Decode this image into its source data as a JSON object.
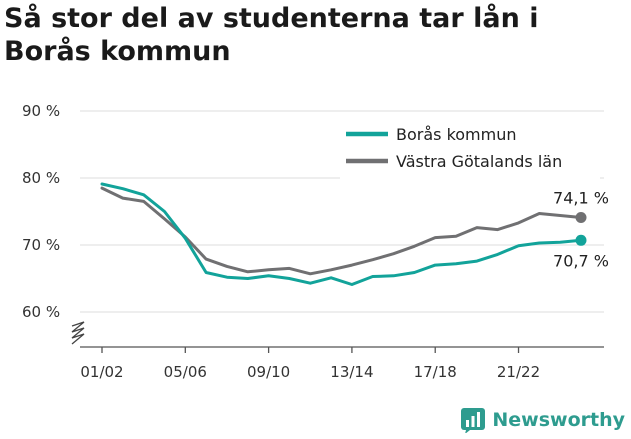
{
  "header": {
    "title": "Så stor del av studenterna tar lån i Borås kommun"
  },
  "brand": {
    "name": "Newsworthy",
    "color": "#2e9c8f"
  },
  "chart_data": {
    "type": "line",
    "title": "Så stor del av studenterna tar lån i Borås kommun",
    "ylim": [
      57,
      90
    ],
    "yticks": [
      {
        "value": 60,
        "label": "60 %"
      },
      {
        "value": 70,
        "label": "70 %"
      },
      {
        "value": 80,
        "label": "80 %"
      },
      {
        "value": 90,
        "label": "90 %"
      }
    ],
    "xtick_labels": [
      "01/02",
      "05/06",
      "09/10",
      "13/14",
      "17/18",
      "21/22"
    ],
    "xtick_indices": [
      0,
      4,
      8,
      12,
      16,
      20
    ],
    "x": [
      "01/02",
      "02/03",
      "03/04",
      "04/05",
      "05/06",
      "06/07",
      "07/08",
      "08/09",
      "09/10",
      "10/11",
      "11/12",
      "12/13",
      "13/14",
      "14/15",
      "15/16",
      "16/17",
      "17/18",
      "18/19",
      "19/20",
      "20/21",
      "21/22",
      "22/23",
      "23/24",
      "24/25"
    ],
    "grid": true,
    "legend": "top-right",
    "series": [
      {
        "name": "Borås kommun",
        "color": "#12a39a",
        "values": [
          79.1,
          78.4,
          77.5,
          75.0,
          71.0,
          65.9,
          65.2,
          65.0,
          65.4,
          65.0,
          64.3,
          65.1,
          64.1,
          65.3,
          65.4,
          65.9,
          67.0,
          67.2,
          67.6,
          68.6,
          69.9,
          70.3,
          70.4,
          70.7
        ],
        "end_label": "70,7 %"
      },
      {
        "name": "Västra Götalands län",
        "color": "#707072",
        "values": [
          78.5,
          77.0,
          76.5,
          73.9,
          71.2,
          67.9,
          66.8,
          66.0,
          66.3,
          66.5,
          65.7,
          66.3,
          67.0,
          67.8,
          68.7,
          69.8,
          71.1,
          71.3,
          72.6,
          72.3,
          73.3,
          74.7,
          74.4,
          74.1
        ],
        "end_label": "74,1 %"
      }
    ]
  }
}
